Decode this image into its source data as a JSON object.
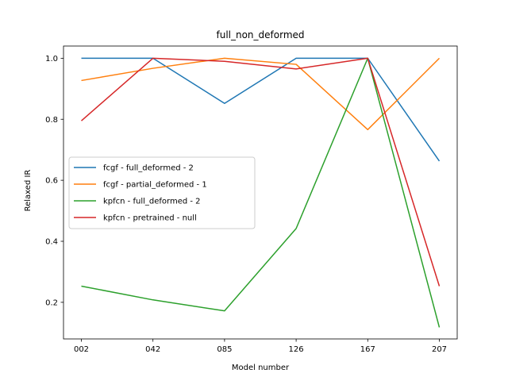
{
  "chart_data": {
    "type": "line",
    "title": "full_non_deformed",
    "xlabel": "Model number",
    "ylabel": "Relaxed IR",
    "categories": [
      "002",
      "042",
      "085",
      "126",
      "167",
      "207"
    ],
    "yticks": [
      "0.2",
      "0.4",
      "0.6",
      "0.8",
      "1.0"
    ],
    "ylim": [
      0.08,
      1.04
    ],
    "grid": false,
    "legend_position": "center-left",
    "series": [
      {
        "name": "fcgf - full_deformed - 2",
        "color": "#1f77b4",
        "values": [
          1.0,
          1.0,
          0.852,
          1.0,
          1.0,
          0.663
        ]
      },
      {
        "name": "fcgf - partial_deformed - 1",
        "color": "#ff7f0e",
        "values": [
          0.927,
          0.967,
          1.0,
          0.98,
          0.766,
          1.0
        ]
      },
      {
        "name": "kpfcn - full_deformed - 2",
        "color": "#2ca02c",
        "values": [
          0.253,
          0.208,
          0.172,
          0.442,
          1.0,
          0.118
        ]
      },
      {
        "name": "kpfcn - pretrained - null",
        "color": "#d62728",
        "values": [
          0.795,
          1.0,
          0.99,
          0.965,
          1.0,
          0.253
        ]
      }
    ]
  }
}
